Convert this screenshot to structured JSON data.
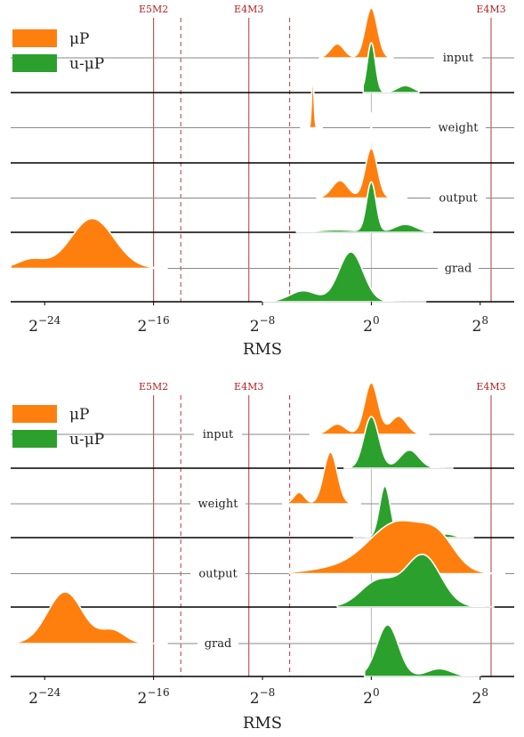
{
  "chart_data": [
    {
      "type": "area",
      "subtype": "ridgeline",
      "xlabel": "RMS",
      "x_scale": "log2",
      "xlim_log2": [
        -26.5,
        10.5
      ],
      "x_ticks": [
        {
          "base": "2",
          "exp": "−24",
          "value": -24
        },
        {
          "base": "2",
          "exp": "−16",
          "value": -16
        },
        {
          "base": "2",
          "exp": "−8",
          "value": -8
        },
        {
          "base": "2",
          "exp": "0",
          "value": 0
        },
        {
          "base": "2",
          "exp": "8",
          "value": 8
        }
      ],
      "reference_lines": [
        {
          "label": "E5M2",
          "x_log2": -16,
          "style": "solid"
        },
        {
          "label": "",
          "x_log2": -14,
          "style": "dashed"
        },
        {
          "label": "E4M3",
          "x_log2": -9,
          "style": "solid"
        },
        {
          "label": "",
          "x_log2": -6,
          "style": "dashed"
        },
        {
          "label": "E4M3",
          "x_log2": 8.8,
          "style": "solid"
        }
      ],
      "legend": {
        "placement": "top-left",
        "entries": [
          {
            "name": "μP",
            "color": "#ff7f0e"
          },
          {
            "name": "u-μP",
            "color": "#2ca02c"
          }
        ]
      },
      "label_positions": "right",
      "rows": [
        {
          "label": "input",
          "series": [
            {
              "name": "μP",
              "range_log2": [
                -3.8,
                1.6
              ],
              "peaks": [
                [
                  0.0,
                  1.0,
                  0.45
                ],
                [
                  -2.5,
                  0.28,
                  0.5
                ]
              ]
            },
            {
              "name": "u-μP",
              "range_log2": [
                -0.6,
                3.5
              ],
              "peaks": [
                [
                  0.0,
                  1.0,
                  0.3
                ],
                [
                  2.5,
                  0.14,
                  0.6
                ]
              ]
            }
          ]
        },
        {
          "label": "weight",
          "series": [
            {
              "name": "μP",
              "range_log2": [
                -5.2,
                -3.6
              ],
              "peaks": [
                [
                  -4.3,
                  1.0,
                  0.09
                ]
              ]
            },
            {
              "name": "u-μP",
              "range_log2": [
                -0.1,
                0.1
              ],
              "peaks": [
                [
                  0.0,
                  1.0,
                  0.04
                ]
              ]
            }
          ]
        },
        {
          "label": "output",
          "series": [
            {
              "name": "μP",
              "range_log2": [
                -4.0,
                2.6
              ],
              "peaks": [
                [
                  0.0,
                  1.0,
                  0.45
                ],
                [
                  -2.3,
                  0.35,
                  0.6
                ]
              ]
            },
            {
              "name": "u-μP",
              "range_log2": [
                -5.5,
                4.5
              ],
              "peaks": [
                [
                  0.0,
                  1.0,
                  0.35
                ],
                [
                  2.5,
                  0.16,
                  0.8
                ],
                [
                  -2.5,
                  0.05,
                  1.5
                ]
              ]
            }
          ]
        },
        {
          "label": "grad",
          "series": [
            {
              "name": "μP",
              "range_log2": [
                -26.5,
                -15.0
              ],
              "peaks": [
                [
                  -20.5,
                  1.0,
                  1.6
                ],
                [
                  -25.0,
                  0.18,
                  1.0
                ]
              ]
            },
            {
              "name": "u-μP",
              "range_log2": [
                -8.0,
                4.0
              ],
              "peaks": [
                [
                  -1.5,
                  1.0,
                  0.9
                ],
                [
                  -5.0,
                  0.22,
                  1.0
                ]
              ]
            }
          ]
        }
      ]
    },
    {
      "type": "area",
      "subtype": "ridgeline",
      "xlabel": "RMS",
      "x_scale": "log2",
      "xlim_log2": [
        -26.5,
        10.5
      ],
      "x_ticks": [
        {
          "base": "2",
          "exp": "−24",
          "value": -24
        },
        {
          "base": "2",
          "exp": "−16",
          "value": -16
        },
        {
          "base": "2",
          "exp": "−8",
          "value": -8
        },
        {
          "base": "2",
          "exp": "0",
          "value": 0
        },
        {
          "base": "2",
          "exp": "8",
          "value": 8
        }
      ],
      "reference_lines": [
        {
          "label": "E5M2",
          "x_log2": -16,
          "style": "solid"
        },
        {
          "label": "",
          "x_log2": -14,
          "style": "dashed"
        },
        {
          "label": "E4M3",
          "x_log2": -9,
          "style": "solid"
        },
        {
          "label": "",
          "x_log2": -6,
          "style": "dashed"
        },
        {
          "label": "E4M3",
          "x_log2": 8.8,
          "style": "solid"
        }
      ],
      "legend": {
        "placement": "top-left",
        "entries": [
          {
            "name": "μP",
            "color": "#ff7f0e"
          },
          {
            "name": "u-μP",
            "color": "#2ca02c"
          }
        ]
      },
      "label_positions": "center",
      "rows": [
        {
          "label": "input",
          "series": [
            {
              "name": "μP",
              "range_log2": [
                -4.5,
                4.2
              ],
              "peaks": [
                [
                  0.0,
                  1.0,
                  0.5
                ],
                [
                  2.0,
                  0.35,
                  0.6
                ],
                [
                  -2.5,
                  0.2,
                  0.6
                ]
              ]
            },
            {
              "name": "u-μP",
              "range_log2": [
                -2.0,
                6.0
              ],
              "peaks": [
                [
                  0.0,
                  1.0,
                  0.55
                ],
                [
                  2.8,
                  0.35,
                  0.7
                ]
              ]
            }
          ]
        },
        {
          "label": "weight",
          "series": [
            {
              "name": "μP",
              "range_log2": [
                -6.5,
                -0.8
              ],
              "peaks": [
                [
                  -3.0,
                  1.0,
                  0.5
                ],
                [
                  -5.3,
                  0.22,
                  0.4
                ]
              ]
            },
            {
              "name": "u-μP",
              "range_log2": [
                -1.3,
                7.5
              ],
              "peaks": [
                [
                  1.0,
                  1.0,
                  0.4
                ],
                [
                  5.5,
                  0.07,
                  0.6
                ]
              ]
            }
          ]
        },
        {
          "label": "output",
          "series": [
            {
              "name": "μP",
              "range_log2": [
                -6.0,
                9.8
              ],
              "peaks": [
                [
                  2.0,
                  1.0,
                  2.2
                ],
                [
                  5.0,
                  0.45,
                  1.2
                ],
                [
                  -3.0,
                  0.08,
                  2.0
                ]
              ]
            },
            {
              "name": "u-μP",
              "range_log2": [
                -2.5,
                9.0
              ],
              "peaks": [
                [
                  3.8,
                  1.0,
                  1.3
                ],
                [
                  0.5,
                  0.5,
                  1.3
                ]
              ]
            }
          ]
        },
        {
          "label": "grad",
          "series": [
            {
              "name": "μP",
              "range_log2": [
                -26.5,
                -15.0
              ],
              "peaks": [
                [
                  -22.5,
                  1.0,
                  1.3
                ],
                [
                  -19.0,
                  0.25,
                  0.9
                ]
              ]
            },
            {
              "name": "u-μP",
              "range_log2": [
                -0.5,
                8.0
              ],
              "peaks": [
                [
                  1.2,
                  1.0,
                  0.8
                ],
                [
                  5.0,
                  0.15,
                  0.9
                ]
              ]
            }
          ]
        }
      ]
    }
  ]
}
